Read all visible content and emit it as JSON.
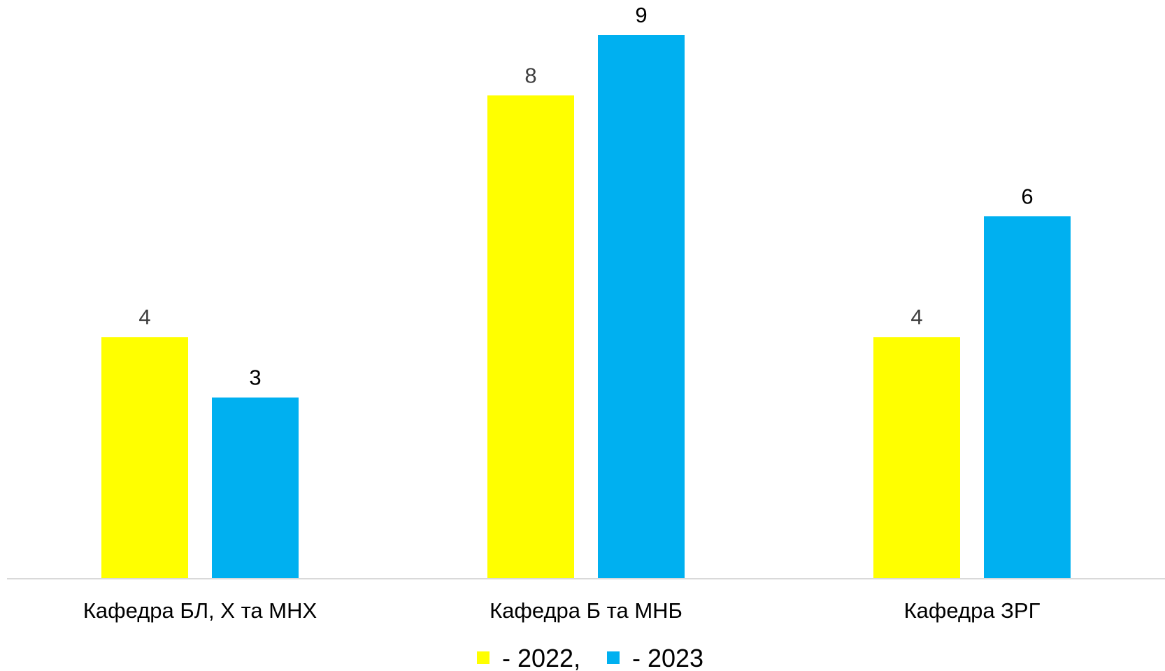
{
  "chart_data": {
    "type": "bar",
    "categories": [
      "Кафедра БЛ, Х та МНХ",
      "Кафедра Б та МНБ",
      "Кафедра ЗРГ"
    ],
    "series": [
      {
        "name": "- 2022,",
        "values": [
          4,
          8,
          4
        ],
        "color": "#FFFF00",
        "label_color": "#404040"
      },
      {
        "name": "- 2023",
        "values": [
          3,
          9,
          6
        ],
        "color": "#00B0F0",
        "label_color": "#000000"
      }
    ],
    "ylim": [
      0,
      9
    ],
    "grid": false,
    "legend": "bottom",
    "xlabel": "",
    "ylabel": "",
    "title": ""
  }
}
